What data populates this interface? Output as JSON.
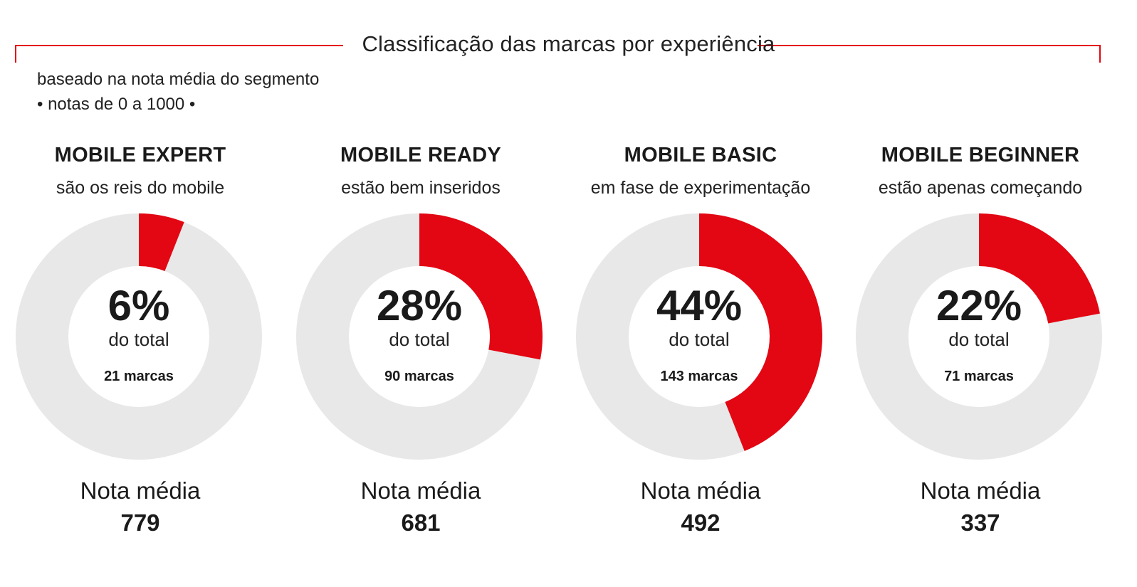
{
  "header": {
    "title": "Classificação das marcas por experiência",
    "subtitle_line1": "baseado na nota média do segmento",
    "subtitle_line2": "• notas de 0 a 1000 •"
  },
  "colors": {
    "accent": "#e30613",
    "ring_bg": "#e8e8e8",
    "text": "#1a1a1a"
  },
  "chart_data": {
    "type": "pie",
    "title": "Classificação das marcas por experiência",
    "subtitle": "baseado na nota média do segmento • notas de 0 a 1000 •",
    "segments": [
      {
        "name": "MOBILE EXPERT",
        "description": "são os reis do mobile",
        "percent": 6,
        "percent_label": "6%",
        "total_label": "do total",
        "brands_label": "21 marcas",
        "brands": 21,
        "score_label": "Nota média",
        "score": 779
      },
      {
        "name": "MOBILE READY",
        "description": "estão bem inseridos",
        "percent": 28,
        "percent_label": "28%",
        "total_label": "do total",
        "brands_label": "90 marcas",
        "brands": 90,
        "score_label": "Nota média",
        "score": 681
      },
      {
        "name": "MOBILE BASIC",
        "description": "em fase de experimentação",
        "percent": 44,
        "percent_label": "44%",
        "total_label": "do total",
        "brands_label": "143 marcas",
        "brands": 143,
        "score_label": "Nota média",
        "score": 492
      },
      {
        "name": "MOBILE BEGINNER",
        "description": "estão apenas começando",
        "percent": 22,
        "percent_label": "22%",
        "total_label": "do total",
        "brands_label": "71 marcas",
        "brands": 71,
        "score_label": "Nota média",
        "score": 337
      }
    ]
  }
}
